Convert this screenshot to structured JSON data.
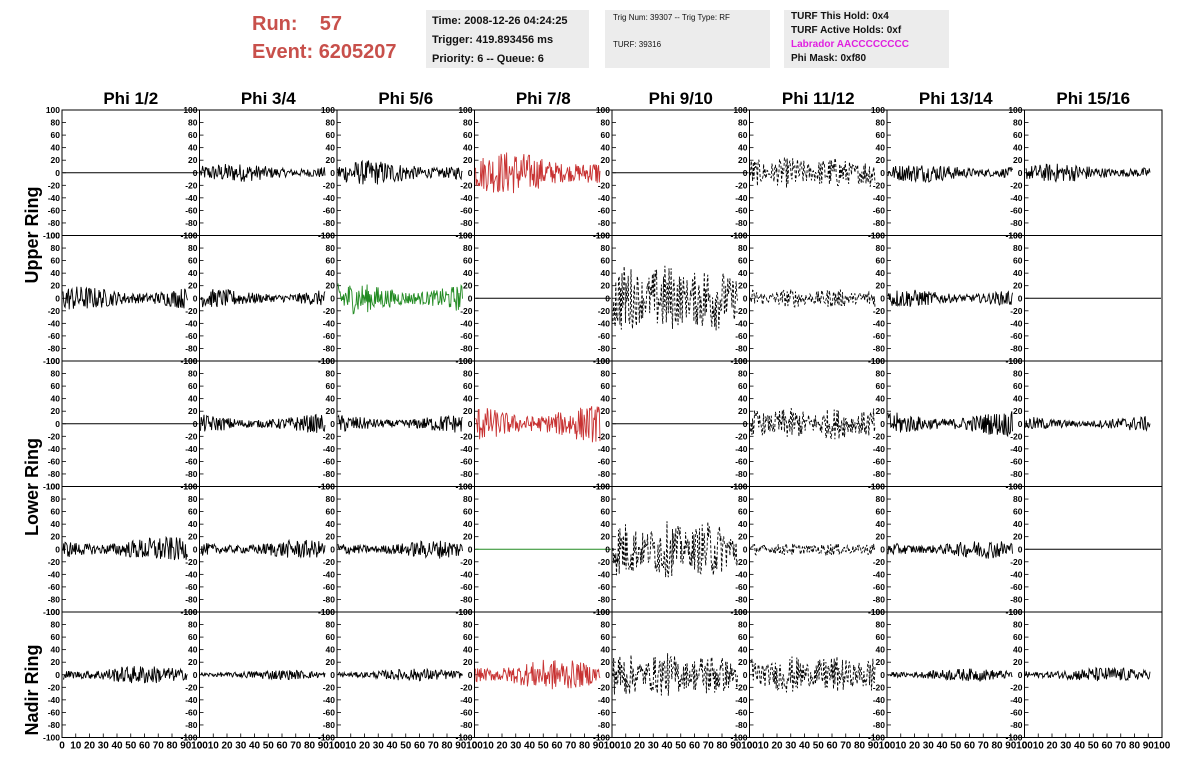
{
  "header": {
    "run_label": "Run:",
    "run_value": "57",
    "event_label": "Event:",
    "event_value": "6205207",
    "time": "Time: 2008-12-26 04:24:25",
    "trigger": "Trigger: 419.893456 ms",
    "priority": "Priority: 6 -- Queue: 6",
    "trig_num": "Trig Num: 39307 -- Trig Type: RF",
    "turf": "TURF: 39316",
    "turf_hold": "TURF This Hold: 0x4",
    "turf_active": "TURF Active Holds: 0xf",
    "labrador": "Labrador AACCCCCCCC",
    "phi_mask": "Phi Mask: 0xf80"
  },
  "colors": {
    "run_text": "#c8504b",
    "labrador_text": "#e020e0",
    "trace_black": "#000000",
    "trace_red": "#c83232",
    "trace_green": "#228b22"
  },
  "chart_data": {
    "type": "line",
    "columns": [
      "Phi 1/2",
      "Phi 3/4",
      "Phi 5/6",
      "Phi 7/8",
      "Phi 9/10",
      "Phi 11/12",
      "Phi 13/14",
      "Phi 15/16"
    ],
    "ring_labels": [
      "Upper Ring",
      "Lower Ring",
      "Nadir Ring"
    ],
    "rows": 5,
    "ylim": [
      -100,
      100
    ],
    "y_ticks": [
      -100,
      -80,
      -60,
      -40,
      -20,
      0,
      20,
      40,
      60,
      80,
      100
    ],
    "xlim": [
      0,
      100
    ],
    "x_ticks": [
      0,
      10,
      20,
      30,
      40,
      50,
      60,
      70,
      80,
      90,
      100
    ],
    "grid": false,
    "panels": [
      [
        {
          "style": "flat",
          "color": "black"
        },
        {
          "style": "noise",
          "amp": 15,
          "color": "black"
        },
        {
          "style": "noise",
          "amp": 20,
          "color": "black"
        },
        {
          "style": "noise",
          "amp": 35,
          "color": "red"
        },
        {
          "style": "flat",
          "color": "black"
        },
        {
          "style": "dashed",
          "amp": 25,
          "color": "black"
        },
        {
          "style": "noise",
          "amp": 15,
          "color": "black"
        },
        {
          "style": "noise",
          "amp": 15,
          "color": "black"
        }
      ],
      [
        {
          "style": "noise",
          "amp": 20,
          "color": "black"
        },
        {
          "style": "noise",
          "amp": 15,
          "color": "black"
        },
        {
          "style": "noise",
          "amp": 25,
          "color": "green"
        },
        {
          "style": "flat",
          "color": "black"
        },
        {
          "style": "dashed",
          "amp": 55,
          "color": "black"
        },
        {
          "style": "dashed",
          "amp": 15,
          "color": "black"
        },
        {
          "style": "noise",
          "amp": 15,
          "color": "black"
        },
        {
          "style": "flat",
          "color": "black"
        }
      ],
      [
        {
          "style": "flat",
          "color": "black"
        },
        {
          "style": "noise",
          "amp": 15,
          "color": "black"
        },
        {
          "style": "noise",
          "amp": 15,
          "color": "black"
        },
        {
          "style": "noise",
          "amp": 30,
          "color": "red"
        },
        {
          "style": "flat",
          "color": "black"
        },
        {
          "style": "dashed",
          "amp": 25,
          "color": "black"
        },
        {
          "style": "noise",
          "amp": 20,
          "color": "black"
        },
        {
          "style": "noise",
          "amp": 12,
          "color": "black"
        }
      ],
      [
        {
          "style": "noise",
          "amp": 20,
          "color": "black"
        },
        {
          "style": "noise",
          "amp": 15,
          "color": "black"
        },
        {
          "style": "noise",
          "amp": 15,
          "color": "black"
        },
        {
          "style": "flat",
          "color": "green"
        },
        {
          "style": "dashed",
          "amp": 45,
          "color": "black"
        },
        {
          "style": "dashed",
          "amp": 10,
          "color": "black"
        },
        {
          "style": "noise",
          "amp": 15,
          "color": "black"
        },
        {
          "style": "flat",
          "color": "black"
        }
      ],
      [
        {
          "style": "noise",
          "amp": 15,
          "color": "black"
        },
        {
          "style": "noise",
          "amp": 8,
          "color": "black"
        },
        {
          "style": "noise",
          "amp": 10,
          "color": "black"
        },
        {
          "style": "noise",
          "amp": 25,
          "color": "red"
        },
        {
          "style": "dashed",
          "amp": 35,
          "color": "black"
        },
        {
          "style": "dashed",
          "amp": 30,
          "color": "black"
        },
        {
          "style": "noise",
          "amp": 10,
          "color": "black"
        },
        {
          "style": "noise",
          "amp": 12,
          "color": "black"
        }
      ]
    ]
  }
}
